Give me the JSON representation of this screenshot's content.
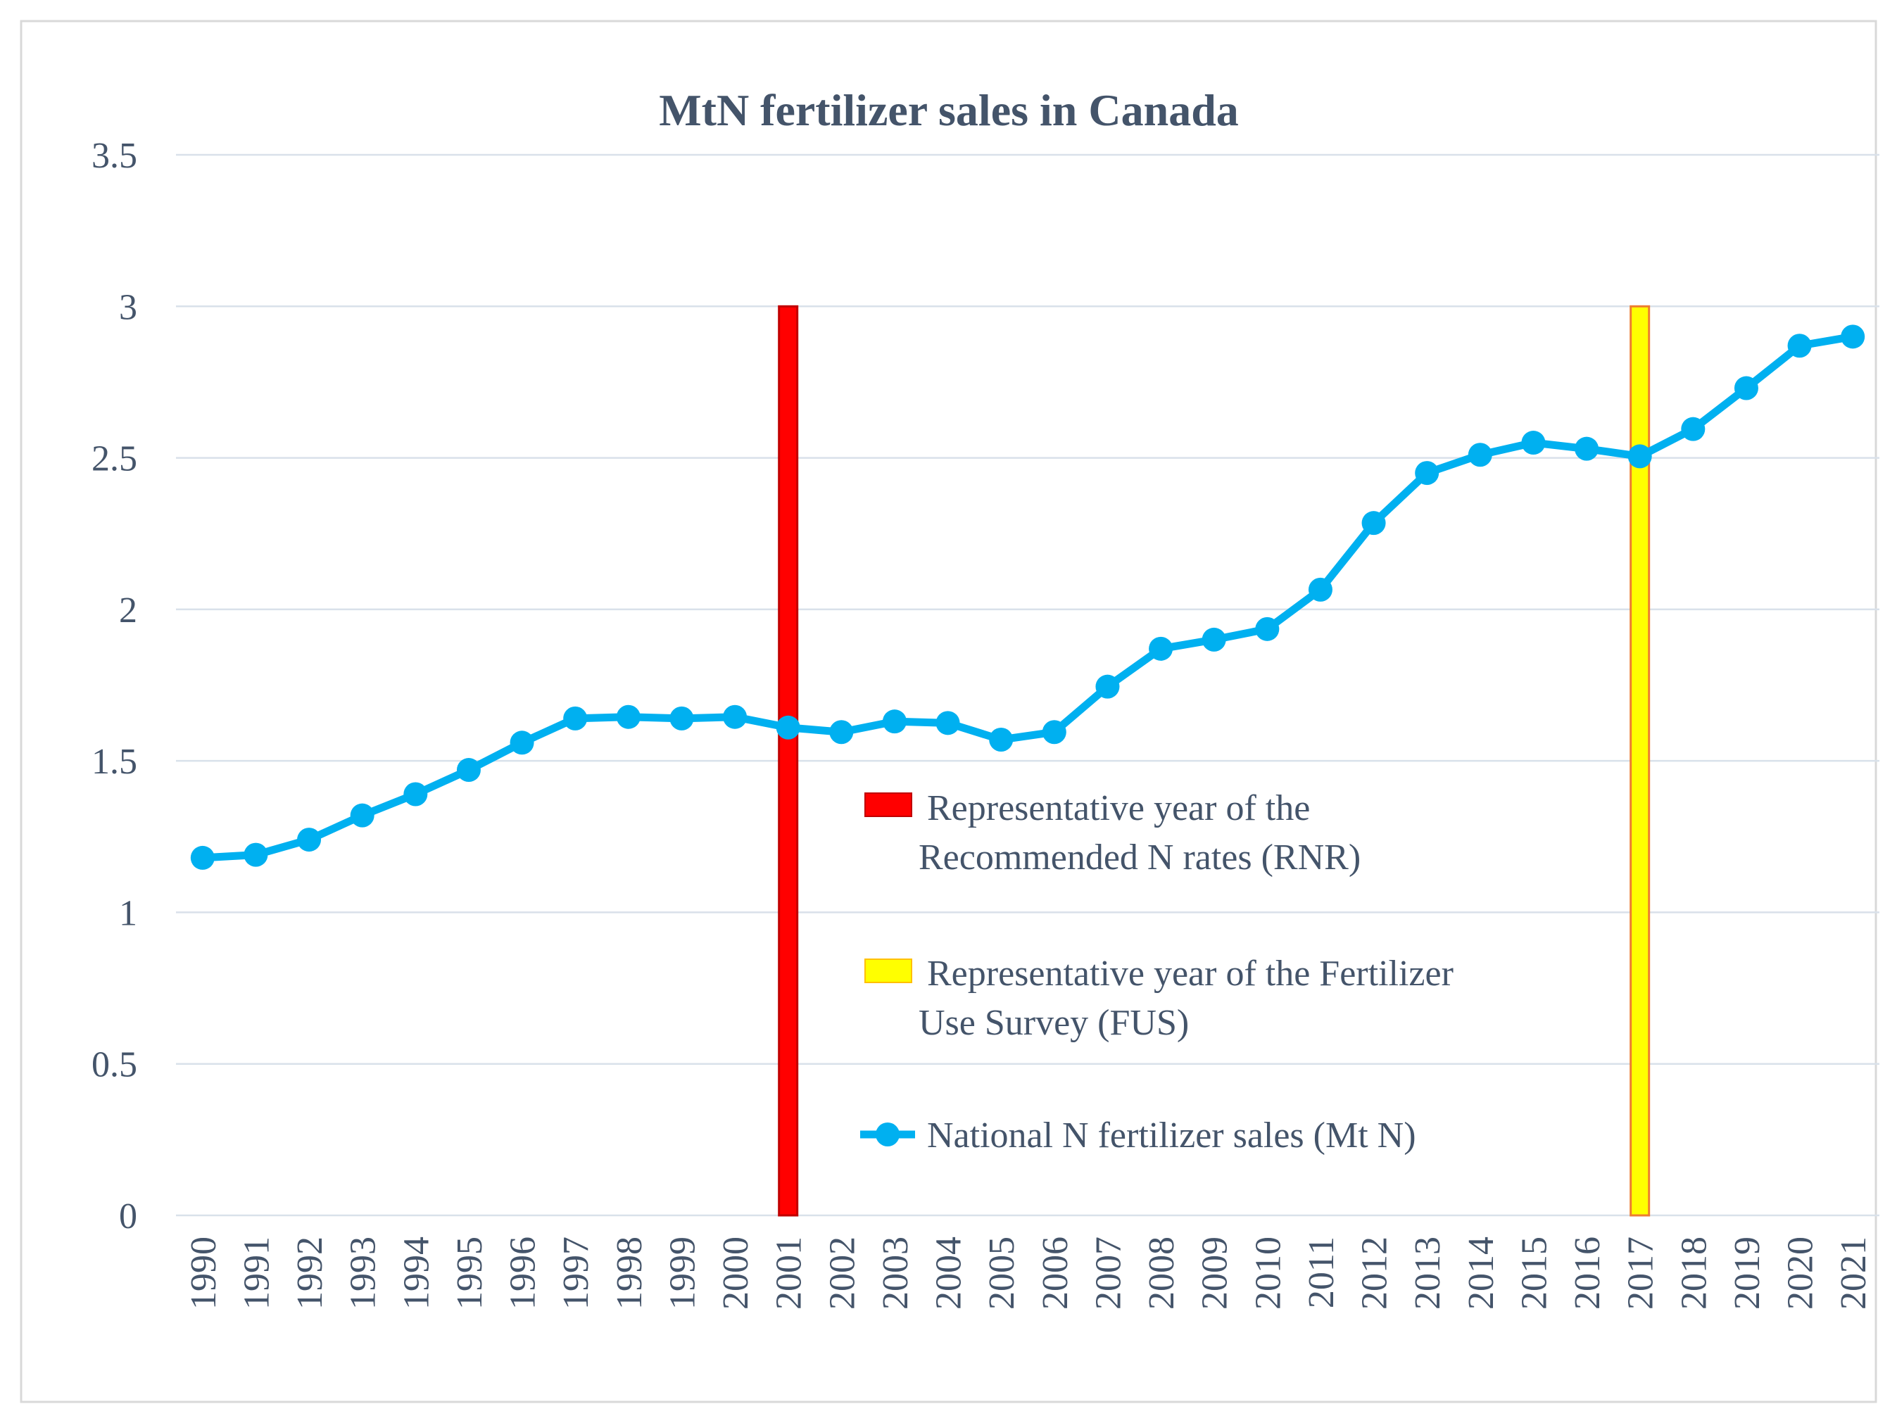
{
  "chart_data": {
    "type": "line",
    "title": "MtN fertilizer sales in Canada",
    "xlabel": "",
    "ylabel": "",
    "ylim": [
      0,
      3.5
    ],
    "yticks": [
      "0",
      "0.5",
      "1",
      "1.5",
      "2",
      "2.5",
      "3",
      "3.5"
    ],
    "categories": [
      "1990",
      "1991",
      "1992",
      "1993",
      "1994",
      "1995",
      "1996",
      "1997",
      "1998",
      "1999",
      "2000",
      "2001",
      "2002",
      "2003",
      "2004",
      "2005",
      "2006",
      "2007",
      "2008",
      "2009",
      "2010",
      "2011",
      "2012",
      "2013",
      "2014",
      "2015",
      "2016",
      "2017",
      "2018",
      "2019",
      "2020",
      "2021"
    ],
    "series": [
      {
        "name": "National N fertilizer sales (Mt N)",
        "color": "#00b0f0",
        "values": [
          1.18,
          1.19,
          1.24,
          1.32,
          1.39,
          1.47,
          1.56,
          1.64,
          1.645,
          1.64,
          1.645,
          1.61,
          1.595,
          1.63,
          1.625,
          1.57,
          1.595,
          1.745,
          1.87,
          1.9,
          1.935,
          2.065,
          2.285,
          2.45,
          2.51,
          2.55,
          2.53,
          2.505,
          2.595,
          2.73,
          2.87,
          2.9
        ]
      }
    ],
    "markers": [
      {
        "name": "Representative year of the Recommended N rates (RNR)",
        "year": "2001",
        "value": 3.0,
        "color": "#ff0000",
        "edge_color": "#c00000"
      },
      {
        "name": "Representative year of the Fertilizer Use Survey (FUS)",
        "year": "2017",
        "value": 3.0,
        "color": "#ffff00",
        "edge_color": "#ed7d31"
      }
    ],
    "legend": {
      "position": "center-right",
      "entries": [
        {
          "lines": [
            "Representative year of the",
            "Recommended N rates (RNR)"
          ]
        },
        {
          "lines": [
            "Representative year of the Fertilizer",
            "Use Survey (FUS)"
          ]
        },
        {
          "lines": [
            "National N fertilizer sales (Mt N)"
          ]
        }
      ]
    }
  }
}
